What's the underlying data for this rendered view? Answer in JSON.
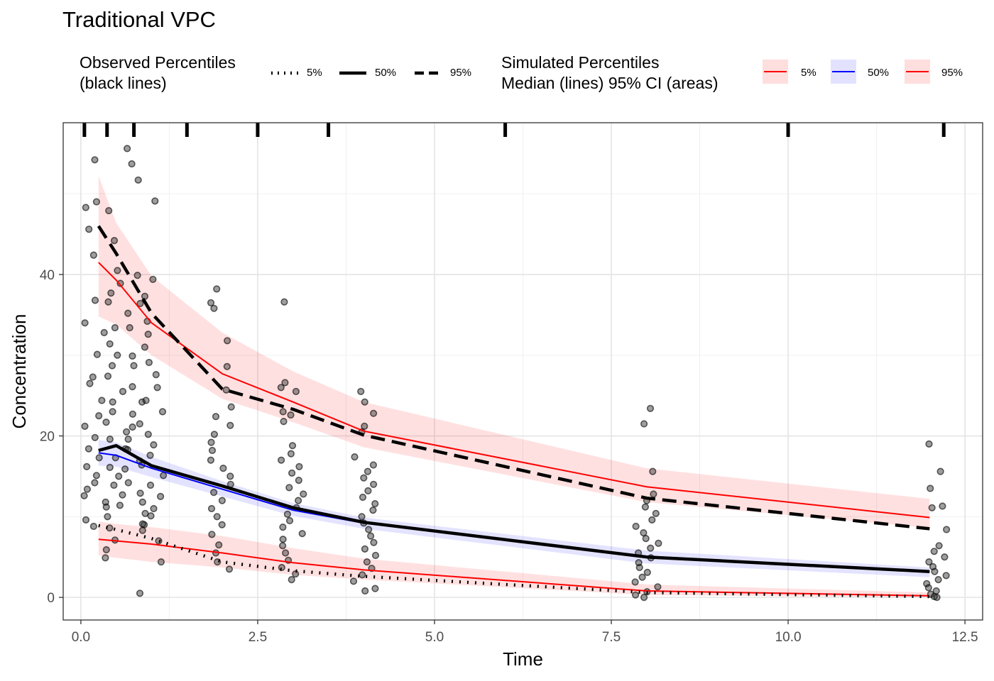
{
  "title": "Traditional VPC",
  "legends": {
    "observed": {
      "title_line1": "Observed Percentiles",
      "title_line2": "(black lines)",
      "items": [
        {
          "label": "5%",
          "style": "dotted"
        },
        {
          "label": "50%",
          "style": "solid"
        },
        {
          "label": "95%",
          "style": "dashed"
        }
      ]
    },
    "simulated": {
      "title_line1": "Simulated Percentiles",
      "title_line2": "Median (lines) 95% CI (areas)",
      "items": [
        {
          "label": "5%",
          "line_color": "#ff0000",
          "fill_color": "#ffdede"
        },
        {
          "label": "50%",
          "line_color": "#0000ff",
          "fill_color": "#e2e2ff"
        },
        {
          "label": "95%",
          "line_color": "#ff0000",
          "fill_color": "#ffdede"
        }
      ]
    }
  },
  "chart_data": {
    "type": "line",
    "xlabel": "Time",
    "ylabel": "Concentration",
    "xlim": [
      -0.25,
      12.75
    ],
    "ylim": [
      -2.8,
      58.8
    ],
    "x_ticks": [
      0.0,
      2.5,
      5.0,
      7.5,
      10.0,
      12.5
    ],
    "x_tick_labels": [
      "0.0",
      "2.5",
      "5.0",
      "7.5",
      "10.0",
      "12.5"
    ],
    "y_ticks": [
      0,
      20,
      40
    ],
    "y_tick_labels": [
      "0",
      "20",
      "40"
    ],
    "grid": true,
    "bin_boundaries": [
      0.05,
      0.37,
      0.75,
      1.5,
      2.5,
      3.5,
      6.0,
      10.0,
      12.2
    ],
    "bin_mid_times": [
      0.25,
      0.5,
      1.0,
      2.0,
      3.0,
      4.0,
      8.0,
      12.0
    ],
    "sim_ci_bands": [
      {
        "name": "5%",
        "color": "#ff0000",
        "lower": [
          5.2,
          4.9,
          4.4,
          3.7,
          2.8,
          2.2,
          0.3,
          0.0
        ],
        "upper": [
          9.4,
          9.1,
          8.7,
          7.6,
          6.1,
          4.8,
          1.6,
          0.6
        ]
      },
      {
        "name": "50%",
        "color": "#0000ff",
        "lower": [
          16.3,
          16.2,
          14.9,
          12.5,
          10.1,
          8.5,
          4.2,
          2.5
        ],
        "upper": [
          19.5,
          19.2,
          17.4,
          14.4,
          11.7,
          9.9,
          5.8,
          3.7
        ]
      },
      {
        "name": "95%",
        "color": "#ff0000",
        "lower": [
          34.8,
          33.8,
          30.0,
          24.6,
          21.7,
          18.6,
          11.8,
          8.6
        ],
        "upper": [
          52.2,
          46.4,
          39.8,
          32.8,
          28.0,
          24.2,
          16.0,
          12.2
        ]
      }
    ],
    "sim_median_lines": [
      {
        "name": "5%",
        "color": "#ff0000",
        "values": [
          7.2,
          7.0,
          6.6,
          5.5,
          4.3,
          3.4,
          0.8,
          0.2
        ]
      },
      {
        "name": "50%",
        "color": "#0000ff",
        "values": [
          17.9,
          17.6,
          16.0,
          13.4,
          10.8,
          9.2,
          5.1,
          3.2
        ]
      },
      {
        "name": "95%",
        "color": "#ff0000",
        "values": [
          41.5,
          39.3,
          34.0,
          27.7,
          24.2,
          20.6,
          13.7,
          9.9
        ]
      }
    ],
    "obs_percentile_lines": [
      {
        "name": "5%",
        "style": "dotted",
        "values": [
          8.9,
          8.4,
          7.3,
          4.4,
          3.3,
          2.6,
          0.6,
          0.1
        ]
      },
      {
        "name": "50%",
        "style": "solid",
        "values": [
          18.2,
          18.8,
          16.3,
          13.8,
          11.1,
          9.3,
          5.0,
          3.2
        ]
      },
      {
        "name": "95%",
        "style": "dashed",
        "values": [
          46.0,
          42.6,
          35.2,
          25.8,
          23.3,
          20.1,
          12.3,
          8.5
        ]
      }
    ],
    "observed_points_note": "Observed concentrations jittered around each sampling time",
    "observed_points": [
      {
        "x": 0.2,
        "y": [
          54.2,
          49.0,
          48.3,
          45.6,
          42.4,
          36.8,
          34.0,
          32.8,
          30.1,
          27.3,
          26.5,
          24.4,
          22.5,
          21.2,
          19.8,
          18.4,
          17.3,
          16.2,
          15.1,
          14.2,
          13.4,
          12.6,
          11.8,
          11.2,
          9.6,
          8.8
        ]
      },
      {
        "x": 0.5,
        "y": [
          55.6,
          47.9,
          44.2,
          40.5,
          38.9,
          37.7,
          36.6,
          35.2,
          33.4,
          31.4,
          30.0,
          28.7,
          27.4,
          25.5,
          24.2,
          23.0,
          21.7,
          20.5,
          19.6,
          18.4,
          17.3,
          16.1,
          15.0,
          13.9,
          12.7,
          11.4,
          10.0,
          8.6,
          7.1,
          5.9,
          4.9
        ]
      },
      {
        "x": 0.75,
        "y": [
          53.7,
          51.7,
          39.9,
          37.3,
          33.4,
          29.9,
          28.7,
          26.1,
          24.2,
          22.7,
          21.1,
          19.6,
          18.3,
          16.9,
          15.9,
          14.2,
          12.9,
          11.8,
          10.4,
          9.0,
          8.3,
          0.5
        ]
      },
      {
        "x": 1.0,
        "y": [
          49.1,
          39.4,
          36.4,
          34.2,
          32.6,
          31.0,
          29.1,
          27.6,
          26.0,
          24.4,
          23.0,
          21.5,
          20.2,
          18.9,
          17.6,
          16.4,
          15.1,
          13.9,
          12.5,
          11.0,
          10.1,
          9.1,
          7.0,
          4.4
        ]
      },
      {
        "x": 2.0,
        "y": [
          38.2,
          36.5,
          35.8,
          31.8,
          28.6,
          25.7,
          23.6,
          22.4,
          21.3,
          20.2,
          19.2,
          18.2,
          17.0,
          16.0,
          15.0,
          14.0,
          13.0,
          12.0,
          11.0,
          10.0,
          9.0,
          7.8,
          6.5,
          5.5,
          4.4,
          3.5
        ]
      },
      {
        "x": 3.0,
        "y": [
          36.6,
          26.6,
          26.0,
          25.5,
          23.0,
          22.6,
          21.8,
          18.8,
          17.8,
          17.0,
          16.2,
          15.4,
          14.5,
          13.6,
          12.8,
          12.0,
          11.1,
          10.3,
          9.5,
          8.7,
          7.9,
          7.2,
          6.4,
          5.5,
          4.6,
          3.7,
          2.9,
          2.2
        ]
      },
      {
        "x": 4.0,
        "y": [
          25.5,
          24.2,
          22.8,
          21.2,
          20.5,
          17.4,
          16.4,
          15.6,
          14.8,
          14.0,
          13.2,
          12.4,
          11.6,
          10.8,
          10.0,
          9.2,
          8.4,
          7.6,
          6.8,
          6.0,
          5.2,
          4.4,
          3.6,
          2.8,
          2.0,
          1.1,
          0.8
        ]
      },
      {
        "x": 8.0,
        "y": [
          23.4,
          21.5,
          15.6,
          12.8,
          12.0,
          11.2,
          10.4,
          9.6,
          8.8,
          8.0,
          7.3,
          6.7,
          6.1,
          5.5,
          4.9,
          4.3,
          3.7,
          3.1,
          2.5,
          1.9,
          1.3,
          0.7,
          0.3,
          0.0
        ]
      },
      {
        "x": 12.1,
        "y": [
          19.0,
          15.6,
          13.5,
          11.3,
          11.1,
          8.4,
          6.4,
          5.7,
          5.0,
          4.4,
          3.8,
          3.2,
          2.7,
          2.2,
          1.7,
          1.2,
          0.8,
          0.4,
          0.1,
          0.0
        ]
      }
    ]
  }
}
